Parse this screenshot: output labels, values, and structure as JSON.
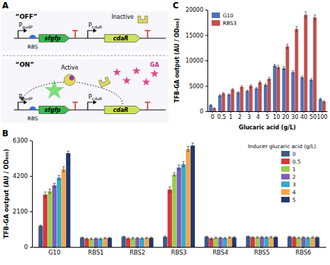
{
  "diagram": {
    "panel": "A",
    "off_label": "“OFF”",
    "on_label": "“ON”",
    "rbs": "RBS",
    "reporter": "sfgfp",
    "regulator": "cdaR",
    "promoter_reporter": {
      "main": "P",
      "sub": "gudP"
    },
    "promoter_regulator": {
      "main": "P",
      "sub": "cdaR"
    },
    "inactive": "Inactive",
    "active": "Active",
    "inducer": "GA"
  },
  "chart_data": [
    {
      "panel": "B",
      "type": "bar",
      "y_label": "TFB-GA output (AU / OD₆₀₀)",
      "legend_title": "Inducer glucaric acid (g/L)",
      "legend": "upper right",
      "categories": [
        "G10",
        "RBS1",
        "RBS2",
        "RBS3",
        "RBS4",
        "RBS5",
        "RBS6"
      ],
      "ylim": [
        0,
        6300
      ],
      "yticks": [
        0,
        2100,
        4200,
        6300
      ],
      "series": [
        {
          "name": "0",
          "color": "#3d5a8a",
          "values": [
            1250,
            550,
            600,
            600,
            600,
            620,
            600
          ],
          "errors": [
            40,
            30,
            30,
            60,
            30,
            30,
            30
          ]
        },
        {
          "name": "0.5",
          "color": "#d9383a",
          "values": [
            3100,
            480,
            500,
            3400,
            500,
            560,
            560
          ],
          "errors": [
            150,
            40,
            40,
            150,
            40,
            40,
            40
          ]
        },
        {
          "name": "1",
          "color": "#9acd50",
          "values": [
            3300,
            480,
            520,
            4300,
            540,
            560,
            540
          ],
          "errors": [
            120,
            40,
            40,
            100,
            40,
            40,
            40
          ]
        },
        {
          "name": "2",
          "color": "#7e5fb5",
          "values": [
            3650,
            500,
            520,
            4700,
            540,
            580,
            560
          ],
          "errors": [
            120,
            40,
            40,
            150,
            40,
            40,
            40
          ]
        },
        {
          "name": "3",
          "color": "#36a9c9",
          "values": [
            4100,
            480,
            510,
            4900,
            520,
            560,
            540
          ],
          "errors": [
            120,
            40,
            40,
            150,
            40,
            40,
            40
          ]
        },
        {
          "name": "4",
          "color": "#f6a54a",
          "values": [
            4600,
            520,
            530,
            5800,
            560,
            580,
            560
          ],
          "errors": [
            150,
            40,
            40,
            150,
            40,
            40,
            40
          ]
        },
        {
          "name": "5",
          "color": "#22386b",
          "values": [
            5550,
            530,
            540,
            6000,
            560,
            580,
            560
          ],
          "errors": [
            120,
            40,
            40,
            150,
            40,
            40,
            40
          ]
        }
      ]
    },
    {
      "panel": "C",
      "type": "bar",
      "x_label": "Glucaric acid (g/L)",
      "y_label": "TFB-GA output (AU / OD₆₀₀)",
      "legend": "upper left",
      "categories": [
        "0",
        "0.5",
        "1",
        "2",
        "3",
        "4",
        "5",
        "10",
        "20",
        "30",
        "40",
        "50",
        "100"
      ],
      "ylim": [
        0,
        20000
      ],
      "yticks": [
        0,
        5000,
        10000,
        15000,
        20000
      ],
      "series": [
        {
          "name": "G10",
          "color": "#4f72b8",
          "values": [
            1200,
            3100,
            3300,
            3700,
            4000,
            4500,
            5200,
            9000,
            8500,
            7700,
            6700,
            6200,
            2400
          ],
          "errors": [
            100,
            150,
            150,
            150,
            150,
            200,
            200,
            250,
            300,
            300,
            250,
            250,
            200
          ]
        },
        {
          "name": "RBS3",
          "color": "#c0504d",
          "values": [
            600,
            3500,
            4300,
            4800,
            5000,
            5700,
            6400,
            8700,
            12800,
            16200,
            19000,
            18500,
            1900
          ],
          "errors": [
            50,
            200,
            200,
            200,
            200,
            250,
            300,
            350,
            400,
            500,
            600,
            500,
            150
          ]
        }
      ]
    }
  ]
}
